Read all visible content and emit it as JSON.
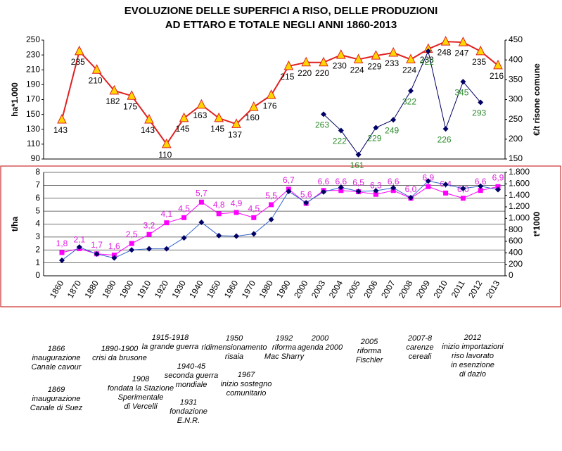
{
  "title": "EVOLUZIONE DELLE SUPERFICI A RISO, DELLE PRODUZIONI\nAD ETTARO E TOTALE  NEGLI ANNI  1860-2013",
  "chart_data": [
    {
      "type": "line",
      "ylabel": "ha*1.000",
      "y2label": "€/t risone comune",
      "categories": [
        null,
        null,
        null,
        null,
        null,
        null,
        null,
        null,
        null,
        null,
        null,
        null,
        null,
        null,
        null,
        null,
        null,
        null,
        null,
        null,
        null,
        null,
        null,
        null,
        null,
        null
      ],
      "ylim": [
        90,
        250
      ],
      "yticks": [
        90,
        110,
        130,
        150,
        170,
        190,
        210,
        230,
        250
      ],
      "y2lim": [
        150,
        450
      ],
      "y2ticks": [
        150,
        200,
        250,
        300,
        350,
        400,
        450
      ],
      "grid": false,
      "series": [
        {
          "color": "#e02020",
          "marker": "triangle",
          "marker_color": "#ffd700",
          "label_color": "#000000",
          "values": [
            143,
            235,
            210,
            182,
            175,
            143,
            110,
            145,
            163,
            145,
            137,
            160,
            176,
            215,
            220,
            220,
            230,
            224,
            229,
            233,
            224,
            238,
            248,
            247,
            235,
            216
          ]
        },
        {
          "color": "#000066",
          "marker": "diamond",
          "marker_color": "#000066",
          "label_color": "#2e8b2e",
          "axis": "y2",
          "values": [
            null,
            null,
            null,
            null,
            null,
            null,
            null,
            null,
            null,
            null,
            null,
            null,
            null,
            null,
            null,
            263,
            222,
            161,
            229,
            249,
            322,
            422,
            226,
            345,
            293,
            null
          ]
        }
      ]
    },
    {
      "type": "line",
      "ylabel": "t/ha",
      "y2label": "t*1000",
      "categories": [
        "1860",
        "1870",
        "1880",
        "1890",
        "1900",
        "1910",
        "1920",
        "1930",
        "1940",
        "1950",
        "1960",
        "1970",
        "1980",
        "1990",
        "2000",
        "2003",
        "2004",
        "2005",
        "2006",
        "2007",
        "2008",
        "2009",
        "2010",
        "2011",
        "2012",
        "2013"
      ],
      "ylim": [
        0,
        8
      ],
      "yticks": [
        0,
        1,
        2,
        3,
        4,
        5,
        6,
        7,
        8
      ],
      "y2lim": [
        0,
        1800
      ],
      "y2ticks": [
        0,
        200,
        400,
        600,
        800,
        {
          "value": 1000,
          "label": "1.000"
        },
        {
          "value": 1200,
          "label": "1.200"
        },
        {
          "value": 1400,
          "label": "1.400"
        },
        {
          "value": 1600,
          "label": "1.600"
        },
        {
          "value": 1800,
          "label": "1.800"
        }
      ],
      "grid": true,
      "series": [
        {
          "color": "#ff00ff",
          "marker": "square",
          "marker_color": "#ff00ff",
          "label_color": "#e020e0",
          "values": [
            1.8,
            2.1,
            1.7,
            1.6,
            2.5,
            3.2,
            4.1,
            4.5,
            5.7,
            4.8,
            4.9,
            4.5,
            5.5,
            6.7,
            5.6,
            6.6,
            6.6,
            6.5,
            6.3,
            6.6,
            6.0,
            6.9,
            6.4,
            6.0,
            6.6,
            6.9
          ],
          "value_labels": [
            "1,8",
            "2,1",
            "1,7",
            "1,6",
            "2,5",
            "3,2",
            "4,1",
            "4,5",
            "5,7",
            "4,8",
            "4,9",
            "4,5",
            "5,5",
            "6,7",
            "5,6",
            "6,6",
            "6,6",
            "6,5",
            "6,3",
            "6,6",
            "6,0",
            "6,9",
            "6,4",
            "6,0",
            "6,6",
            "6,9"
          ]
        },
        {
          "color": "#3366cc",
          "marker": "diamond",
          "marker_color": "#000066",
          "axis": "y2",
          "values": [
            270,
            500,
            380,
            310,
            450,
            470,
            470,
            660,
            930,
            700,
            690,
            730,
            980,
            1470,
            1270,
            1460,
            1540,
            1470,
            1480,
            1530,
            1360,
            1650,
            1590,
            1520,
            1560,
            1500
          ]
        }
      ]
    }
  ],
  "annotations": [
    "1866\ninaugurazione\nCanale cavour",
    "1869\ninaugurazione\nCanale di Suez",
    "1890-1900\ncrisi da brusone",
    "1908\nfondata la Stazione\nSperimentale\ndi Vercelli",
    "1915-1918\nla grande guerra",
    "1940-45\nseconda guerra\nmondiale",
    "1931\nfondazione\nE.N.R.",
    "1950\nridimensionamento\nrisaia",
    "1967\ninizio sostegno\ncomunitario",
    "1992\nriforma\nMac Sharry",
    "2000\nagenda 2000",
    "2005\nriforma\nFischler",
    "2007-8\ncarenze\ncereali",
    "2012\ninizio importazioni\nriso lavorato\nin esenzione\ndi dazio"
  ]
}
